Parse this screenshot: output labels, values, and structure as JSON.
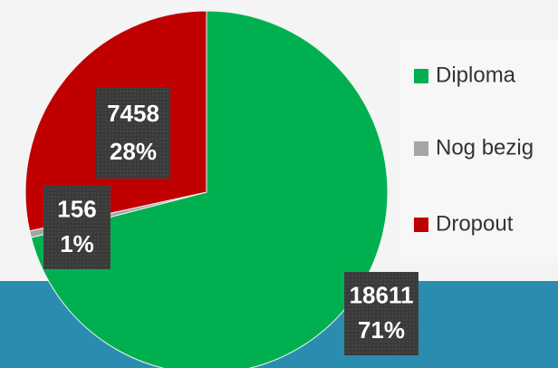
{
  "chart_data": {
    "type": "pie",
    "categories": [
      "Diploma",
      "Nog bezig",
      "Dropout"
    ],
    "values": [
      18611,
      156,
      7458
    ],
    "percentages": [
      71,
      1,
      28
    ],
    "percentage_labels": [
      "71%",
      "1%",
      "28%"
    ],
    "colors": [
      "#00b050",
      "#a5a5a5",
      "#c00000"
    ],
    "legend": "right"
  }
}
